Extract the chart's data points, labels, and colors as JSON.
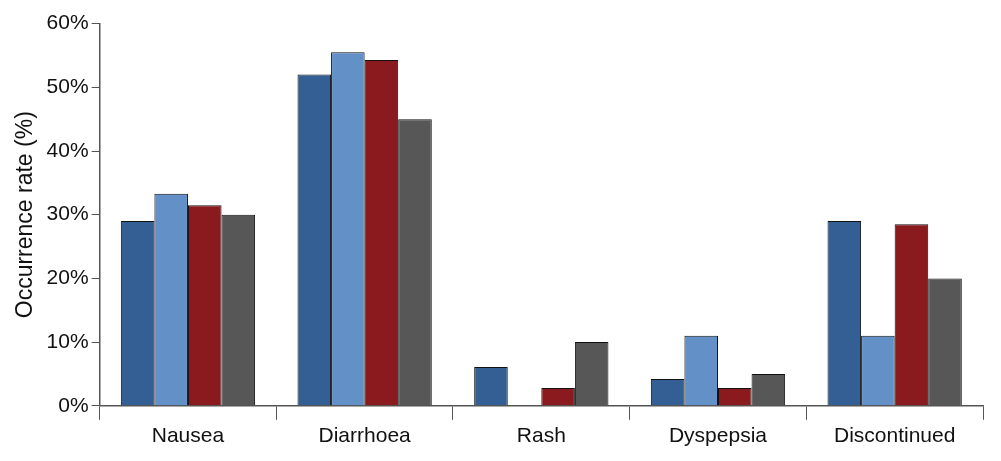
{
  "chart_data": {
    "type": "bar",
    "ylabel": "Occurrence rate (%)",
    "categories": [
      "Nausea",
      "Diarrhoea",
      "Rash",
      "Dyspepsia",
      "Discontinued"
    ],
    "series": [
      {
        "color": "#335f94",
        "values": [
          29,
          52,
          6.1,
          4.2,
          29
        ]
      },
      {
        "color": "#6490c8",
        "values": [
          33.3,
          55.5,
          0,
          11,
          11
        ]
      },
      {
        "color": "#8b1a1e",
        "values": [
          31.5,
          54.3,
          2.8,
          2.8,
          28.5
        ]
      },
      {
        "color": "#575757",
        "values": [
          30,
          45,
          10,
          5,
          20
        ]
      }
    ],
    "ylim": [
      0,
      60
    ],
    "yticks": [
      {
        "value": 0,
        "label": "0%"
      },
      {
        "value": 10,
        "label": "10%"
      },
      {
        "value": 20,
        "label": "20%"
      },
      {
        "value": 30,
        "label": "30%"
      },
      {
        "value": 40,
        "label": "40%"
      },
      {
        "value": 50,
        "label": "50%"
      },
      {
        "value": 60,
        "label": "60%"
      }
    ],
    "grid": false,
    "legend": false
  }
}
